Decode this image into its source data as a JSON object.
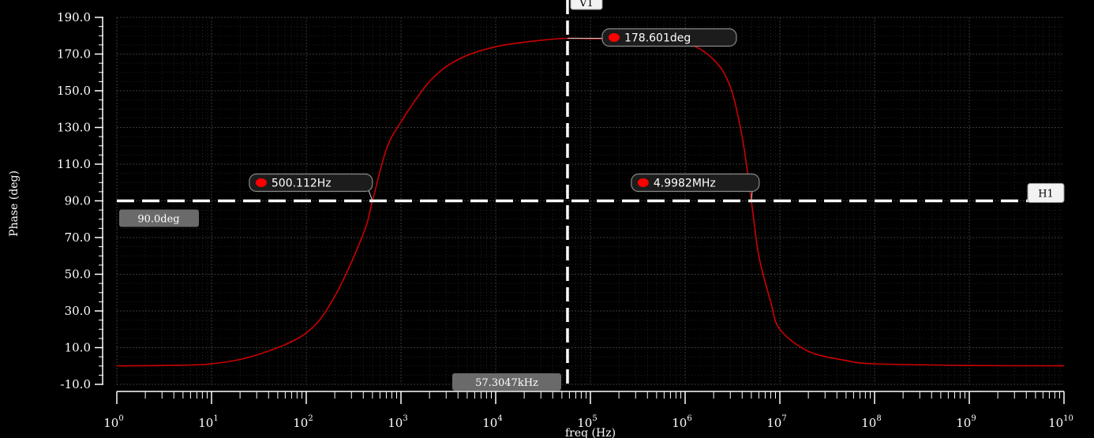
{
  "chart_data": {
    "type": "line",
    "title": "",
    "xlabel": "freq (Hz)",
    "ylabel": "Phase (deg)",
    "x_scale": "log",
    "xlim": [
      1,
      10000000000
    ],
    "ylim": [
      -10,
      190
    ],
    "x_tick_exponents": [
      0,
      1,
      2,
      3,
      4,
      5,
      6,
      7,
      8,
      9,
      10
    ],
    "y_ticks": [
      "-10.0",
      "10.0",
      "30.0",
      "50.0",
      "70.0",
      "90.0",
      "110.0",
      "130.0",
      "150.0",
      "170.0",
      "190.0"
    ],
    "grid": true,
    "series": [
      {
        "color": "#cc0000",
        "x": [
          1,
          3,
          10,
          30,
          100,
          200,
          400,
          500.112,
          700,
          1000,
          2000,
          4000,
          10000,
          30000,
          57304.7,
          100000,
          300000,
          1000000,
          2000000,
          3000000,
          4000000,
          4998200,
          6000000,
          8000000,
          10000000,
          20000000,
          50000000,
          100000000,
          1000000000,
          10000000000
        ],
        "y": [
          0.05,
          0.3,
          1.2,
          6,
          18,
          38,
          72,
          90,
          118,
          133,
          155,
          167,
          174,
          177.5,
          178.6,
          178.4,
          178,
          176,
          167,
          152,
          125,
          90,
          60,
          35,
          20,
          8,
          3,
          1.2,
          0.3,
          0.05
        ]
      }
    ],
    "markers": [
      {
        "label": "500.112Hz",
        "x": 500.112,
        "y": 90.0
      },
      {
        "label": "178.601deg",
        "x": 57304.7,
        "y": 178.601
      },
      {
        "label": "4.9982MHz",
        "x": 4998200,
        "y": 90.0
      }
    ],
    "cursors": {
      "vertical": {
        "name": "V1",
        "x": 57304.7,
        "value_label": "57.3047kHz"
      },
      "horizontal": {
        "name": "H1",
        "y": 90.0,
        "value_label": "90.0deg"
      }
    },
    "colors": {
      "background": "#000000",
      "trace": "#cc0000",
      "marker_dot": "#ff0000",
      "grid": "#3a3a3a",
      "cursor": "#ffffff"
    }
  }
}
